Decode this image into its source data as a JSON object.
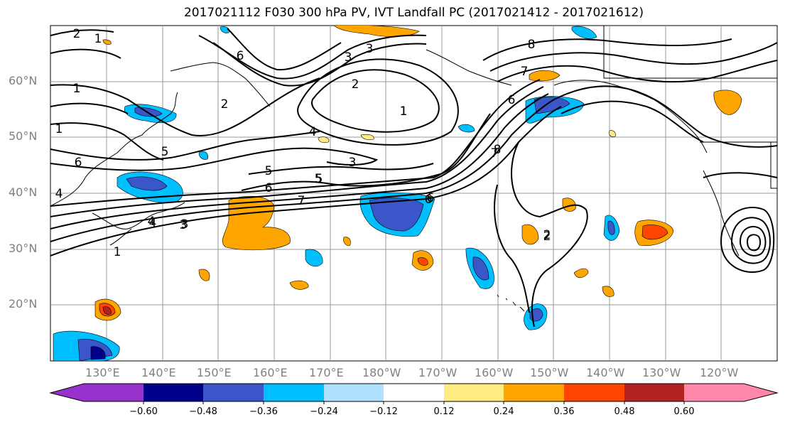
{
  "title": "2017021112 F030 300 hPa PV, IVT Landfall PC (2017021412 - 2017021612)",
  "lat_labels": [
    "60°N",
    "50°N",
    "40°N",
    "30°N",
    "20°N"
  ],
  "lon_labels": [
    "130°E",
    "140°E",
    "150°E",
    "160°E",
    "170°E",
    "180°W",
    "170°W",
    "160°W",
    "150°W",
    "140°W",
    "130°W",
    "120°W"
  ],
  "contour_labels": [
    "2",
    "1",
    "1",
    "2",
    "6",
    "3",
    "2",
    "1",
    "5",
    "6",
    "7",
    "8",
    "7",
    "8",
    "6",
    "4",
    "3",
    "4",
    "5",
    "6",
    "5",
    "4",
    "3",
    "1",
    "1",
    "2",
    "6",
    "4",
    "3",
    "7",
    "2",
    "6",
    "5",
    "3",
    "1",
    "1"
  ],
  "colorbar": {
    "ticks": [
      "−0.60",
      "−0.48",
      "−0.36",
      "−0.24",
      "−0.12",
      "0.12",
      "0.24",
      "0.36",
      "0.48",
      "0.60"
    ],
    "colors": [
      "#9932cc",
      "#00008b",
      "#3a56c8",
      "#00bfff",
      "#b0e2ff",
      "#ffffff",
      "#ffeb82",
      "#ffa500",
      "#ff4500",
      "#b22222",
      "#ff88aa"
    ]
  },
  "fill_colors": {
    "neg_light": "#b0e2ff",
    "neg_mid": "#00bfff",
    "neg_strong": "#3a56c8",
    "neg_max": "#00008b",
    "pos_light": "#ffeb82",
    "pos_mid": "#ffa500",
    "pos_strong": "#ff4500",
    "pos_max": "#b22222"
  }
}
